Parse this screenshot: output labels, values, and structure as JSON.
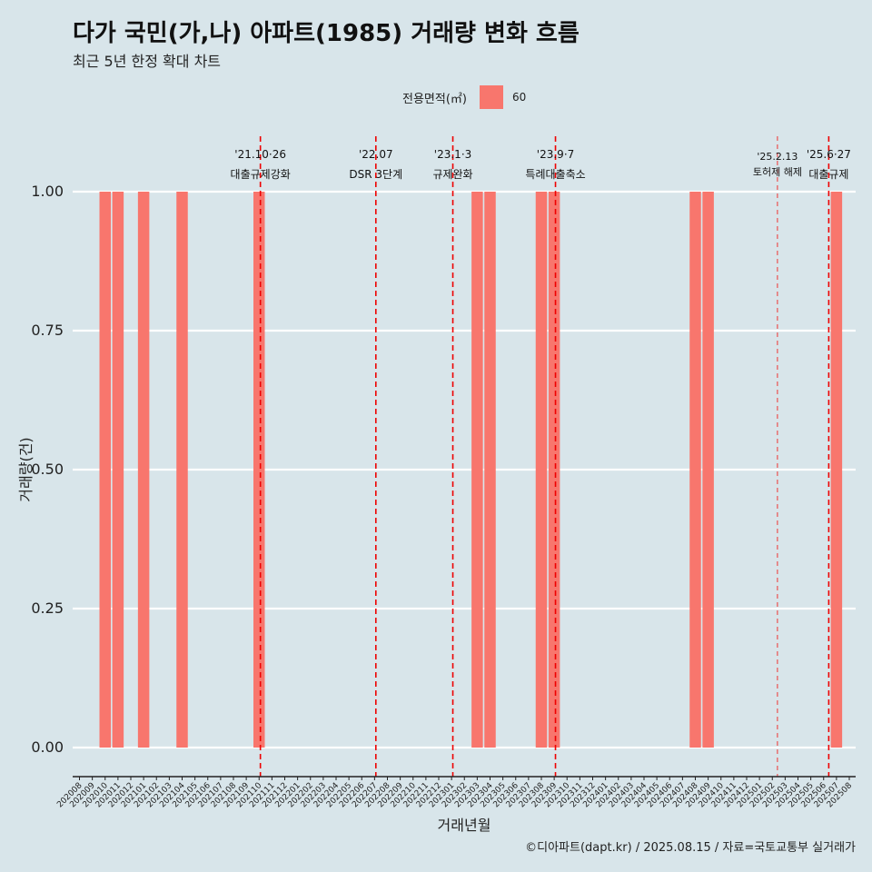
{
  "title": "다가 국민(가,나) 아파트(1985) 거래량 변화 흐름",
  "subtitle": "최근 5년 한정 확대 차트",
  "legend": {
    "title": "전용면적(㎡)",
    "label": "60",
    "color": "#f8766d"
  },
  "caption": "©디아파트(dapt.kr) / 2025.08.15 / 자료=국토교통부 실거래가",
  "chart_data": {
    "type": "bar",
    "xlabel": "거래년월",
    "ylabel": "거래량(건)",
    "ylim": [
      0,
      1
    ],
    "yticks": [
      "0.00",
      "0.25",
      "0.50",
      "0.75",
      "1.00"
    ],
    "grid": true,
    "legend_position": "top",
    "categories": [
      "202008",
      "202009",
      "202010",
      "202011",
      "202012",
      "202101",
      "202102",
      "202103",
      "202104",
      "202105",
      "202106",
      "202107",
      "202108",
      "202109",
      "202110",
      "202111",
      "202112",
      "202201",
      "202202",
      "202203",
      "202204",
      "202205",
      "202206",
      "202207",
      "202208",
      "202209",
      "202210",
      "202211",
      "202212",
      "202301",
      "202302",
      "202303",
      "202304",
      "202305",
      "202306",
      "202307",
      "202308",
      "202309",
      "202310",
      "202311",
      "202312",
      "202401",
      "202402",
      "202403",
      "202404",
      "202405",
      "202406",
      "202407",
      "202408",
      "202409",
      "202410",
      "202411",
      "202412",
      "202501",
      "202502",
      "202503",
      "202504",
      "202505",
      "202506",
      "202507",
      "202508"
    ],
    "series": [
      {
        "name": "60",
        "color": "#f8766d",
        "values": [
          0,
          0,
          1,
          1,
          0,
          1,
          0,
          0,
          1,
          0,
          0,
          0,
          0,
          0,
          1,
          0,
          0,
          0,
          0,
          0,
          0,
          0,
          0,
          0,
          0,
          0,
          0,
          0,
          0,
          0,
          0,
          1,
          1,
          0,
          0,
          0,
          1,
          1,
          0,
          0,
          0,
          0,
          0,
          0,
          0,
          0,
          0,
          0,
          1,
          1,
          0,
          0,
          0,
          0,
          0,
          0,
          0,
          0,
          0,
          1,
          0
        ]
      }
    ],
    "annotations": [
      {
        "date": "'21.10·26",
        "label": "대출규제강화",
        "pos": 14.1,
        "style": "bold"
      },
      {
        "date": "'22.07",
        "label": "DSR 3단계",
        "pos": 23.1,
        "style": "bold"
      },
      {
        "date": "'23.1·3",
        "label": "규제완화",
        "pos": 29.1,
        "style": "bold"
      },
      {
        "date": "'23.9·7",
        "label": "특례대출축소",
        "pos": 37.1,
        "style": "bold"
      },
      {
        "date": "'25.2.13",
        "label": "토허제 해제",
        "pos": 54.4,
        "style": "light"
      },
      {
        "date": "'25.6·27",
        "label": "대출규제",
        "pos": 58.4,
        "style": "bold"
      }
    ]
  }
}
